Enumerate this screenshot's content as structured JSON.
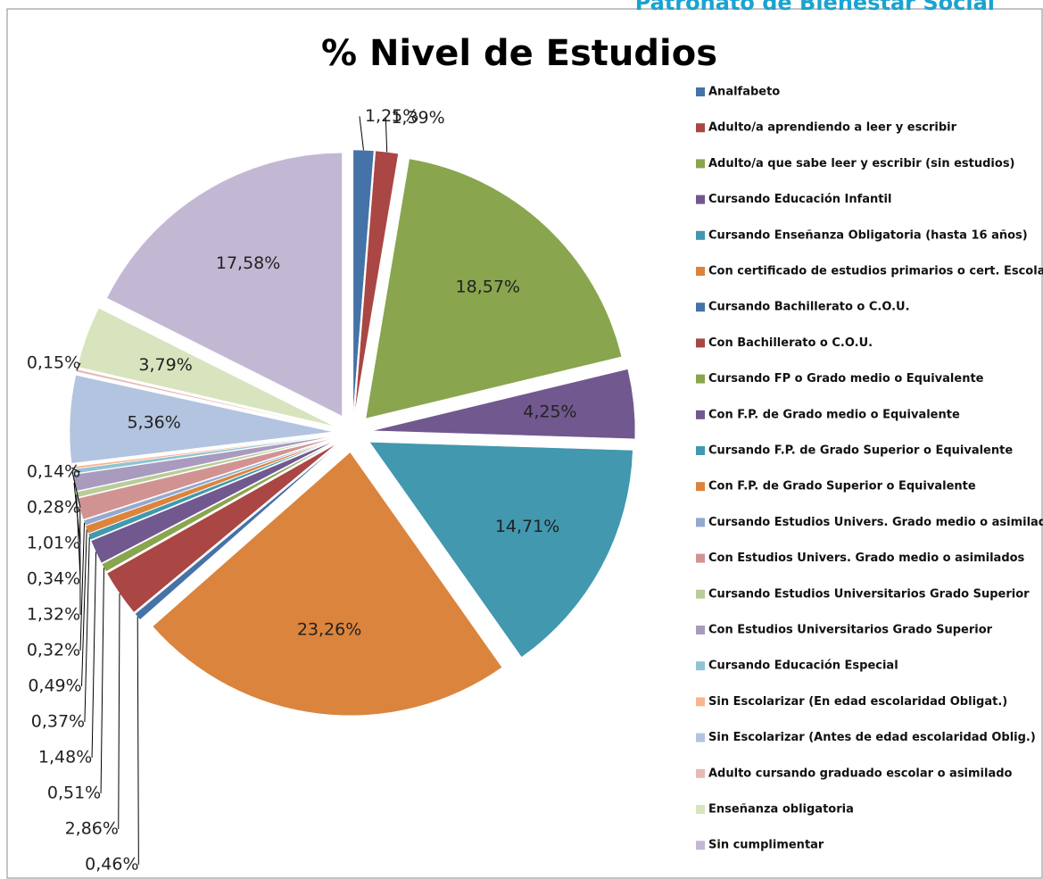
{
  "header": {
    "text": "Patronato de Bienestar Social"
  },
  "chart_data": {
    "type": "pie",
    "title": "% Nivel de Estudios",
    "categories": [
      "Analfabeto",
      "Adulto/a aprendiendo a leer y escribir",
      "Adulto/a que sabe leer y escribir (sin estudios)",
      "Cursando Educación Infantil",
      "Cursando Enseñanza Obligatoria (hasta 16 años)",
      "Con certificado de estudios primarios o cert. Escolar",
      "Cursando Bachillerato o C.O.U.",
      "Con Bachillerato o C.O.U.",
      "Cursando FP o Grado medio o Equivalente",
      "Con F.P. de Grado medio o Equivalente",
      "Cursando F.P. de Grado Superior o Equivalente",
      "Con F.P. de Grado Superior o Equivalente",
      "Cursando Estudios Univers. Grado medio o asimilados",
      "Con Estudios Univers. Grado medio o asimilados",
      "Cursando Estudios Universitarios Grado Superior",
      "Con Estudios Universitarios Grado Superior",
      "Cursando Educación Especial",
      "Sin Escolarizar (En edad escolaridad Obligat.)",
      "Sin Escolarizar (Antes de edad escolaridad Oblig.)",
      "Adulto cursando graduado escolar o asimilado",
      "Enseñanza obligatoria",
      "Sin cumplimentar"
    ],
    "values": [
      1.25,
      1.39,
      18.57,
      4.25,
      14.71,
      23.26,
      0.46,
      2.86,
      0.51,
      1.48,
      0.37,
      0.49,
      0.32,
      1.32,
      0.34,
      1.01,
      0.28,
      0.14,
      5.36,
      0.15,
      3.79,
      17.58
    ],
    "value_labels": [
      "1,25%",
      "1,39%",
      "18,57%",
      "4,25%",
      "14,71%",
      "23,26%",
      "0,46%",
      "2,86%",
      "0,51%",
      "1,48%",
      "0,37%",
      "0,49%",
      "0,32%",
      "1,32%",
      "0,34%",
      "1,01%",
      "0,28%",
      "0,14%",
      "5,36%",
      "0,15%",
      "3,79%",
      "17,58%"
    ],
    "colors": [
      "#4572a7",
      "#aa4643",
      "#89a54e",
      "#71588f",
      "#4198af",
      "#db843d",
      "#4572a7",
      "#aa4643",
      "#89a54e",
      "#71588f",
      "#4198af",
      "#db843d",
      "#93a9cf",
      "#d19392",
      "#b9cd96",
      "#a99bbd",
      "#91c3d5",
      "#f9b590",
      "#b3c4e0",
      "#e6b9b8",
      "#d7e4bd",
      "#c3b8d4"
    ],
    "legend": "right"
  }
}
